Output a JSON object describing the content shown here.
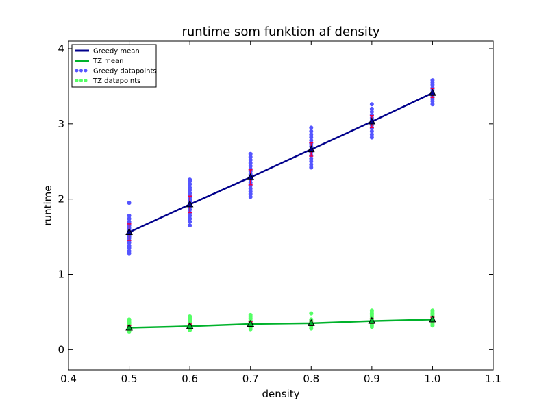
{
  "chart_data": {
    "type": "line",
    "title": "runtime som funktion af density",
    "xlabel": "density",
    "ylabel": "runtime",
    "xlim": [
      0.4,
      1.1
    ],
    "ylim": [
      -0.27,
      4.1
    ],
    "xticks": [
      0.4,
      0.5,
      0.6,
      0.7,
      0.8,
      0.9,
      1.0,
      1.1
    ],
    "yticks": [
      0,
      1,
      2,
      3,
      4
    ],
    "xtick_labels": [
      "0.4",
      "0.5",
      "0.6",
      "0.7",
      "0.8",
      "0.9",
      "1.0",
      "1.1"
    ],
    "ytick_labels": [
      "0",
      "1",
      "2",
      "3",
      "4"
    ],
    "legend_position": "top-left",
    "grid": false,
    "x": [
      0.5,
      0.6,
      0.7,
      0.8,
      0.9,
      1.0
    ],
    "series": [
      {
        "name": "Greedy mean",
        "kind": "line",
        "color": "#00008b",
        "values": [
          1.56,
          1.93,
          2.29,
          2.66,
          3.03,
          3.41
        ],
        "errors": [
          0.11,
          0.11,
          0.1,
          0.09,
          0.08,
          0.06
        ]
      },
      {
        "name": "TZ mean",
        "kind": "line",
        "color": "#00b22b",
        "values": [
          0.29,
          0.31,
          0.34,
          0.35,
          0.38,
          0.4
        ],
        "errors": [
          0.03,
          0.03,
          0.03,
          0.03,
          0.03,
          0.03
        ]
      },
      {
        "name": "Greedy datapoints",
        "kind": "scatter",
        "color": "#5555ff",
        "points": {
          "0.5": [
            1.28,
            1.31,
            1.35,
            1.38,
            1.42,
            1.45,
            1.48,
            1.5,
            1.52,
            1.55,
            1.57,
            1.6,
            1.62,
            1.65,
            1.68,
            1.7,
            1.74,
            1.78,
            1.95
          ],
          "0.6": [
            1.65,
            1.7,
            1.74,
            1.78,
            1.82,
            1.86,
            1.9,
            1.93,
            1.96,
            1.99,
            2.02,
            2.05,
            2.08,
            2.12,
            2.15,
            2.2,
            2.24,
            2.26
          ],
          "0.7": [
            2.03,
            2.07,
            2.1,
            2.14,
            2.18,
            2.22,
            2.26,
            2.3,
            2.33,
            2.37,
            2.4,
            2.44,
            2.48,
            2.52,
            2.56,
            2.6
          ],
          "0.8": [
            2.42,
            2.46,
            2.5,
            2.54,
            2.58,
            2.62,
            2.66,
            2.7,
            2.74,
            2.78,
            2.82,
            2.86,
            2.9,
            2.95
          ],
          "0.9": [
            2.82,
            2.86,
            2.9,
            2.94,
            2.98,
            3.02,
            3.05,
            3.08,
            3.12,
            3.16,
            3.2,
            3.26
          ],
          "1.0": [
            3.26,
            3.3,
            3.33,
            3.36,
            3.39,
            3.42,
            3.45,
            3.48,
            3.52,
            3.55,
            3.58
          ]
        }
      },
      {
        "name": "TZ datapoints",
        "kind": "scatter",
        "color": "#55ff66",
        "points": {
          "0.5": [
            0.24,
            0.26,
            0.28,
            0.3,
            0.32,
            0.34,
            0.36,
            0.38,
            0.4
          ],
          "0.6": [
            0.26,
            0.28,
            0.3,
            0.32,
            0.34,
            0.36,
            0.38,
            0.4,
            0.42,
            0.44
          ],
          "0.7": [
            0.27,
            0.29,
            0.31,
            0.33,
            0.35,
            0.37,
            0.39,
            0.42,
            0.44,
            0.46
          ],
          "0.8": [
            0.28,
            0.3,
            0.32,
            0.34,
            0.36,
            0.38,
            0.4,
            0.48
          ],
          "0.9": [
            0.3,
            0.32,
            0.34,
            0.36,
            0.38,
            0.4,
            0.42,
            0.44,
            0.46,
            0.48,
            0.5,
            0.52
          ],
          "1.0": [
            0.32,
            0.34,
            0.36,
            0.38,
            0.4,
            0.42,
            0.44,
            0.46,
            0.48,
            0.5,
            0.52
          ]
        }
      }
    ],
    "mean_marker_color": "#e8004c",
    "errorbar_color": "#e8004c"
  }
}
